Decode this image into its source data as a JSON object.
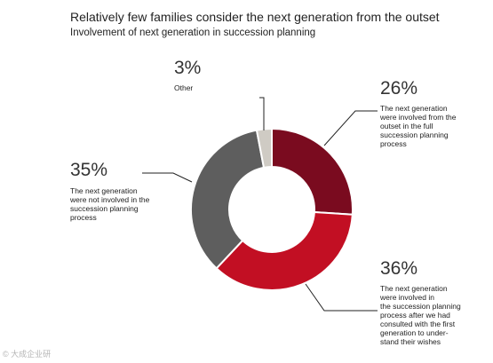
{
  "chart_data": {
    "type": "pie",
    "title": "Relatively few families consider the next generation from the outset",
    "subtitle": "Involvement of next generation in succession planning",
    "slices": [
      {
        "value": 26,
        "label": "26%",
        "description": "The next generation\nwere involved from the\noutset in the full\nsuccession planning\nprocess",
        "color": "#7a0b1f"
      },
      {
        "value": 36,
        "label": "36%",
        "description": "The next generation\nwere involved in\nthe succession planning\nprocess after we had\nconsulted with the first\ngeneration to under-\nstand their wishes",
        "color": "#c20f23"
      },
      {
        "value": 35,
        "label": "35%",
        "description": "The next generation\nwere not involved in the\nsuccession planning\nprocess",
        "color": "#5e5e5e"
      },
      {
        "value": 3,
        "label": "3%",
        "description": "Other",
        "color": "#cfcbc4"
      }
    ]
  },
  "watermark": "© 大成企业研"
}
